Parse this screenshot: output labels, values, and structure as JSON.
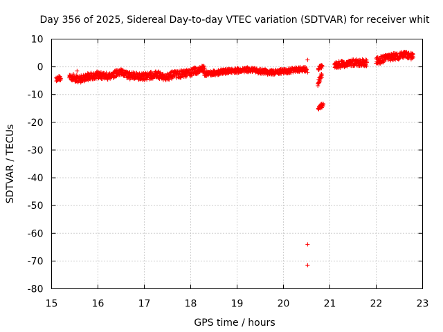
{
  "chart_data": {
    "type": "scatter",
    "title": "Day 356 of 2025, Sidereal Day-to-day VTEC variation (SDTVAR) for receiver whit",
    "xlabel": "GPS time / hours",
    "ylabel": "SDTVAR / TECUs",
    "xlim": [
      15,
      23
    ],
    "ylim": [
      -80,
      10
    ],
    "grid": true,
    "x_ticks": [
      "15",
      "16",
      "17",
      "18",
      "19",
      "20",
      "21",
      "22",
      "23"
    ],
    "y_ticks": [
      "10",
      "0",
      "-10",
      "-20",
      "-30",
      "-40",
      "-50",
      "-60",
      "-70",
      "-80"
    ],
    "marker": "plus",
    "color": "#ff0000",
    "series": [
      {
        "name": "SDTVAR",
        "segments": [
          {
            "x": [
              15.1,
              15.15,
              15.2
            ],
            "y": [
              -4.5,
              -4.0,
              -4.3
            ],
            "band": 1.5
          },
          {
            "x": [
              15.38,
              15.5,
              15.6,
              15.7,
              15.8,
              15.9,
              16.0,
              16.1,
              16.2,
              16.3,
              16.4,
              16.5,
              16.6,
              16.7,
              16.8,
              16.9,
              17.0,
              17.1,
              17.2,
              17.3,
              17.4,
              17.5,
              17.6,
              17.7,
              17.8,
              17.9,
              18.0,
              18.1,
              18.2,
              18.3
            ],
            "y": [
              -3.5,
              -4.0,
              -4.5,
              -4.0,
              -3.5,
              -3.2,
              -3.0,
              -3.2,
              -3.4,
              -3.0,
              -2.5,
              -2.0,
              -2.8,
              -3.2,
              -3.0,
              -3.4,
              -3.5,
              -3.2,
              -3.0,
              -2.8,
              -3.8,
              -3.4,
              -3.0,
              -2.8,
              -2.6,
              -2.4,
              -2.0,
              -1.5,
              -1.0,
              -0.8
            ],
            "band": 2.6
          },
          {
            "x": [
              18.3,
              18.4,
              18.5,
              18.6,
              18.7,
              18.8,
              18.9,
              19.0,
              19.1,
              19.2,
              19.3,
              19.4,
              19.5,
              19.6,
              19.7,
              19.8,
              19.9,
              20.0,
              20.1,
              20.2,
              20.3,
              20.4,
              20.5
            ],
            "y": [
              -2.5,
              -2.4,
              -2.2,
              -2.0,
              -1.8,
              -1.6,
              -1.4,
              -1.3,
              -1.2,
              -1.0,
              -1.2,
              -1.4,
              -1.6,
              -1.8,
              -2.0,
              -2.0,
              -1.8,
              -1.6,
              -1.5,
              -1.2,
              -1.0,
              -0.8,
              -1.0
            ],
            "band": 1.8
          },
          {
            "x": [
              20.75,
              20.78,
              20.81,
              20.84
            ],
            "y": [
              -0.5,
              -0.3,
              0.0,
              0.2
            ],
            "band": 1.4
          },
          {
            "x": [
              20.74,
              20.77,
              20.8,
              20.83
            ],
            "y": [
              -6.0,
              -5.0,
              -4.0,
              -3.0
            ],
            "band": 2.0
          },
          {
            "x": [
              20.75,
              20.79,
              20.83,
              20.86
            ],
            "y": [
              -15.0,
              -14.5,
              -14.0,
              -13.5
            ],
            "band": 1.6
          },
          {
            "x": [
              21.1,
              21.2,
              21.3,
              21.4,
              21.5,
              21.6,
              21.7,
              21.8
            ],
            "y": [
              0.5,
              0.8,
              1.0,
              1.2,
              1.5,
              1.5,
              1.5,
              1.5
            ],
            "band": 2.5
          },
          {
            "x": [
              22.0,
              22.1,
              22.2,
              22.3,
              22.4,
              22.5,
              22.6,
              22.7,
              22.8
            ],
            "y": [
              2.0,
              2.5,
              3.0,
              3.5,
              3.8,
              4.0,
              4.2,
              4.0,
              3.5
            ],
            "band": 2.6
          }
        ],
        "outliers": [
          {
            "x": 20.52,
            "y": 2.5
          },
          {
            "x": 20.52,
            "y": -2.0
          },
          {
            "x": 20.52,
            "y": -64.0
          },
          {
            "x": 20.52,
            "y": -71.5
          },
          {
            "x": 15.55,
            "y": -1.5
          }
        ]
      }
    ]
  }
}
